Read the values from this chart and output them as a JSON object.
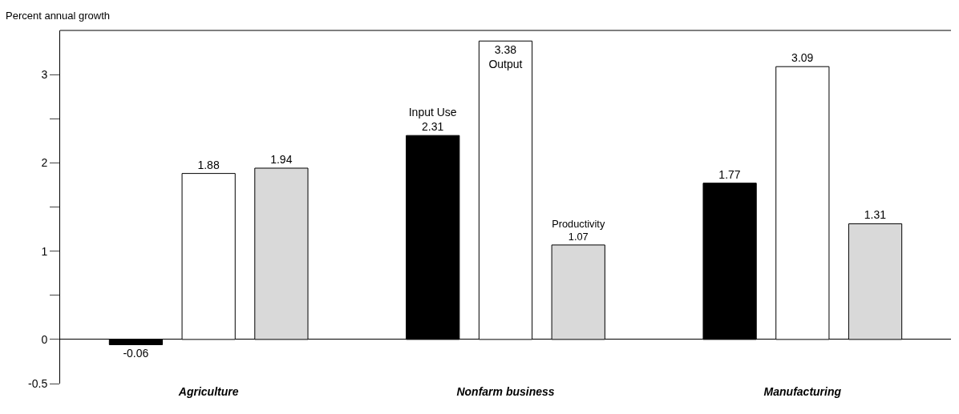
{
  "chart_data": {
    "type": "bar",
    "ylabel": "Percent annual growth",
    "categories": [
      "Agriculture",
      "Nonfarm business",
      "Manufacturing"
    ],
    "series": [
      {
        "name": "Input Use",
        "color": "#000000",
        "values": [
          -0.06,
          2.31,
          1.77
        ]
      },
      {
        "name": "Output",
        "color": "#ffffff",
        "values": [
          1.88,
          3.38,
          3.09
        ]
      },
      {
        "name": "Productivity",
        "color": "#d9d9d9",
        "values": [
          1.94,
          1.07,
          1.31
        ]
      }
    ],
    "ylim": [
      -0.5,
      3.5
    ],
    "yticks": [
      -0.5,
      0,
      {
        "value": 0.5,
        "label": null
      },
      1,
      {
        "value": 1.5,
        "label": null
      },
      2,
      {
        "value": 2.5,
        "label": null
      },
      3
    ],
    "data_labels": true,
    "legend": false
  }
}
